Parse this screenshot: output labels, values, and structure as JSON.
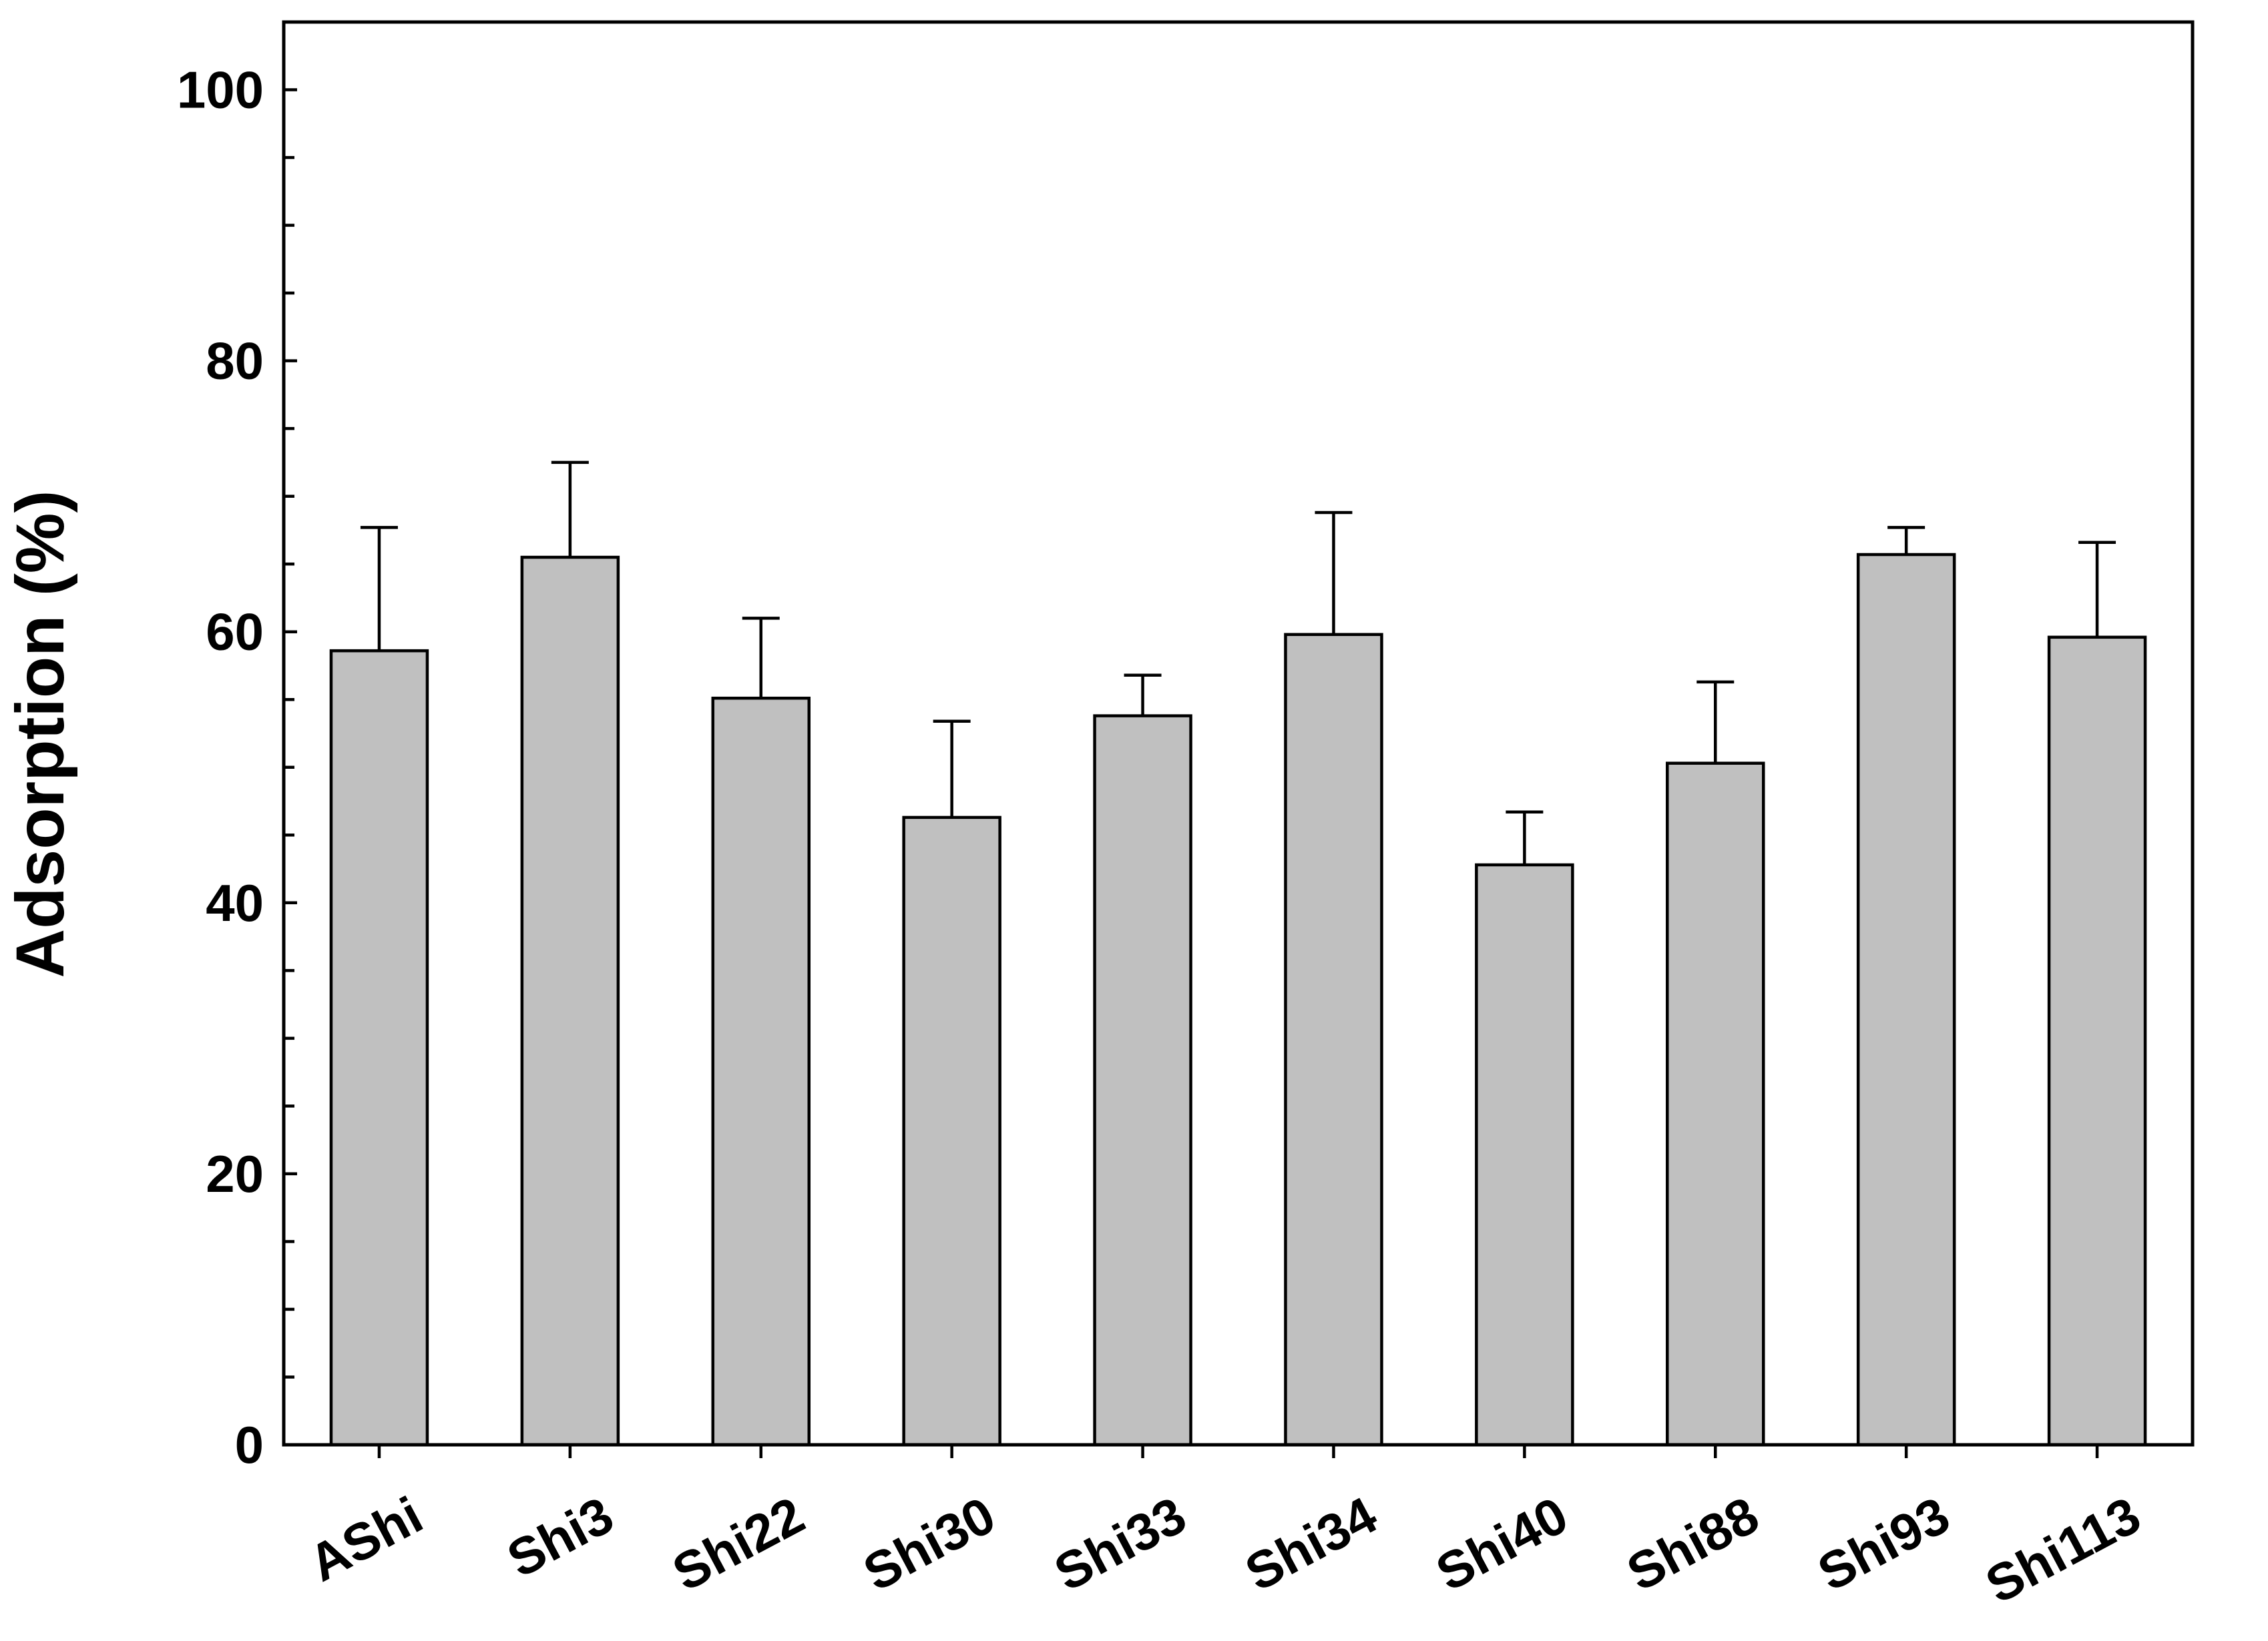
{
  "chart_data": {
    "type": "bar",
    "title": "",
    "xlabel": "",
    "ylabel": "Adsorption (%)",
    "ylim": [
      0,
      105
    ],
    "yticks": [
      0,
      20,
      40,
      60,
      80,
      100
    ],
    "yminor_step": 5,
    "grid": false,
    "bar_color": "#c0c0c0",
    "edge_color": "#000000",
    "categories": [
      "AShi",
      "Shi3",
      "Shi22",
      "Shi30",
      "Shi33",
      "Shi34",
      "Shi40",
      "Shi88",
      "Shi93",
      "Shi113"
    ],
    "values": [
      58.6,
      65.5,
      55.1,
      46.3,
      53.8,
      59.8,
      42.8,
      50.3,
      65.7,
      59.6
    ],
    "error_upper": [
      9.1,
      7.0,
      5.9,
      7.1,
      3.0,
      9.0,
      3.9,
      6.0,
      2.0,
      7.0
    ]
  }
}
